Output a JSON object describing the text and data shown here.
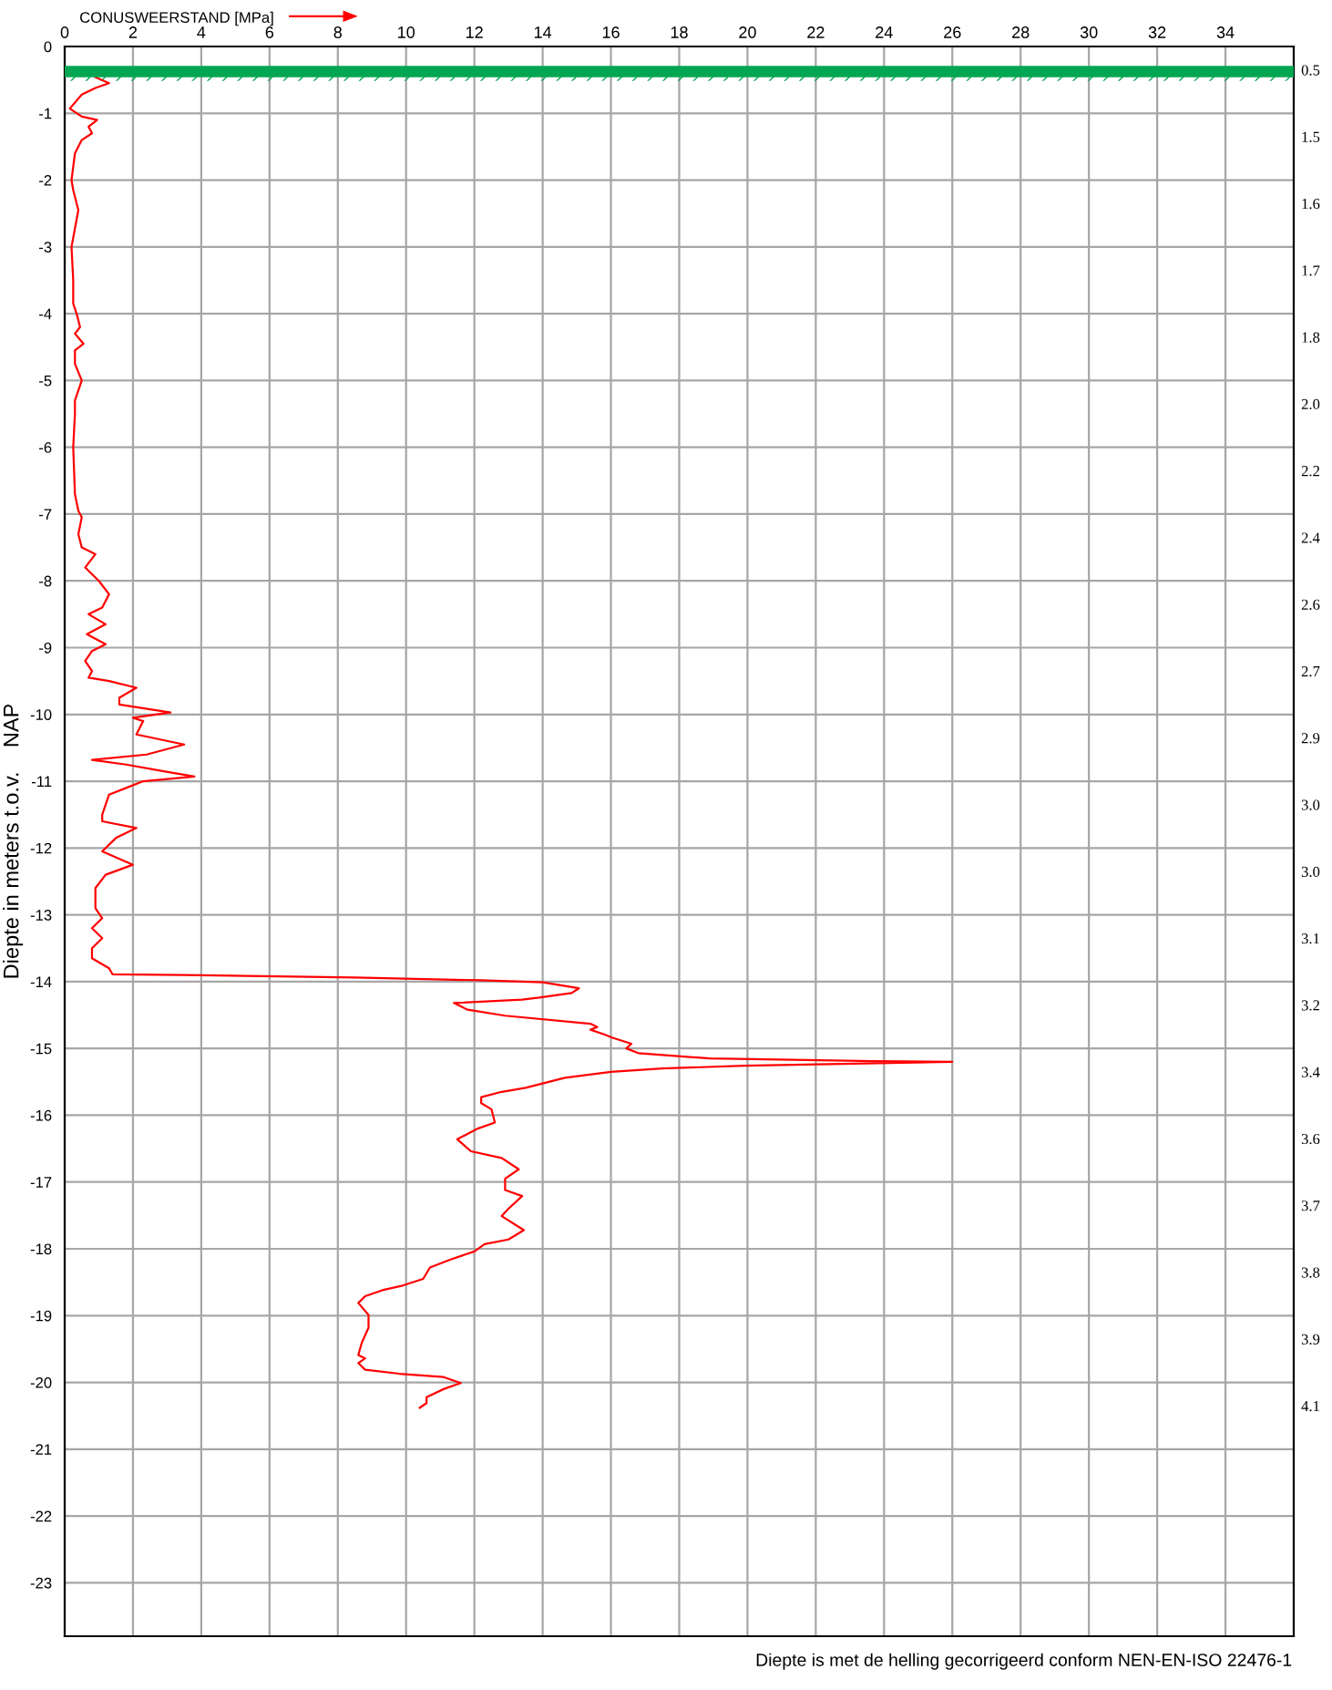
{
  "chart_data": {
    "type": "line",
    "xlabel": "CONUSWEERSTAND [MPa]",
    "ylabel": "Diepte in meters t.o.v.    NAP",
    "xlim": [
      0,
      36
    ],
    "xticks": [
      0,
      2,
      4,
      6,
      8,
      10,
      12,
      14,
      16,
      18,
      20,
      22,
      24,
      26,
      28,
      30,
      32,
      34
    ],
    "ylim": [
      -23.8,
      0
    ],
    "yticks": [
      0,
      -1,
      -2,
      -3,
      -4,
      -5,
      -6,
      -7,
      -8,
      -9,
      -10,
      -11,
      -12,
      -13,
      -14,
      -15,
      -16,
      -17,
      -18,
      -19,
      -20,
      -21,
      -22,
      -23
    ],
    "grid": true,
    "ref_lines": [
      {
        "axis": "y",
        "value": -0.375,
        "color": "#00a651"
      }
    ],
    "annotations": [
      "Diepte is met de helling gecorrigeerd conform NEN-EN-ISO 22476-1",
      "0.5",
      "1.5",
      "1.6",
      "1.7",
      "1.8",
      "2.0",
      "2.2",
      "2.4",
      "2.6",
      "2.7",
      "2.9",
      "3.0",
      "3.0",
      "3.1",
      "3.2",
      "3.4",
      "3.6",
      "3.7",
      "3.8",
      "3.9",
      "4.1"
    ],
    "series": [
      {
        "color": "#ff0000",
        "x": [
          0.9,
          1.3,
          0.9,
          0.5,
          0.15,
          0.5,
          0.95,
          0.7,
          0.8,
          0.5,
          0.3,
          0.2,
          0.25,
          0.4,
          0.2,
          0.25,
          0.25,
          0.35,
          0.45,
          0.3,
          0.55,
          0.3,
          0.3,
          0.5,
          0.3,
          0.3,
          0.25,
          0.3,
          0.4,
          0.5,
          0.4,
          0.5,
          0.9,
          0.6,
          1.0,
          1.3,
          1.1,
          0.7,
          1.2,
          0.65,
          1.2,
          0.8,
          0.6,
          0.8,
          0.7,
          1.3,
          2.1,
          1.6,
          1.6,
          3.1,
          2.0,
          2.3,
          2.1,
          3.5,
          2.4,
          0.8,
          1.8,
          2.9,
          3.8,
          2.3,
          1.8,
          1.3,
          1.1,
          1.1,
          2.1,
          1.5,
          1.1,
          2.0,
          1.2,
          0.9,
          0.9,
          1.1,
          0.8,
          1.1,
          0.8,
          0.8,
          1.3,
          1.4,
          3.5,
          8.5,
          12.2,
          14.0,
          15.06,
          14.85,
          13.9,
          13.4,
          11.4,
          11.8,
          12.9,
          15.4,
          15.6,
          15.4,
          15.8,
          16.05,
          16.6,
          16.45,
          16.8,
          18.9,
          23.7,
          26.0,
          19.9,
          17.5,
          16.0,
          14.65,
          13.5,
          12.8,
          12.2,
          12.2,
          12.5,
          12.6,
          12.1,
          11.5,
          11.9,
          12.8,
          13.3,
          12.9,
          12.9,
          13.4,
          13.0,
          12.8,
          13.45,
          13.0,
          12.3,
          12.0,
          11.3,
          10.7,
          10.5,
          9.9,
          9.3,
          8.8,
          8.6,
          8.9,
          8.9,
          8.7,
          8.6,
          8.8,
          8.6,
          8.8,
          9.8,
          11.1,
          11.6,
          11.1,
          10.6,
          10.6,
          10.4
        ],
        "values": [
          -0.46,
          -0.55,
          -0.62,
          -0.72,
          -0.93,
          -1.05,
          -1.1,
          -1.2,
          -1.3,
          -1.4,
          -1.6,
          -2.0,
          -2.15,
          -2.45,
          -3.0,
          -3.5,
          -3.85,
          -4.0,
          -4.2,
          -4.3,
          -4.45,
          -4.55,
          -4.75,
          -5.0,
          -5.3,
          -5.5,
          -6.0,
          -6.7,
          -6.95,
          -7.05,
          -7.3,
          -7.5,
          -7.6,
          -7.8,
          -8.0,
          -8.2,
          -8.4,
          -8.5,
          -8.65,
          -8.8,
          -8.95,
          -9.05,
          -9.2,
          -9.35,
          -9.45,
          -9.5,
          -9.6,
          -9.75,
          -9.85,
          -9.97,
          -10.05,
          -10.1,
          -10.3,
          -10.45,
          -10.6,
          -10.68,
          -10.75,
          -10.85,
          -10.93,
          -11.0,
          -11.1,
          -11.2,
          -11.5,
          -11.6,
          -11.7,
          -11.85,
          -12.05,
          -12.25,
          -12.4,
          -12.6,
          -12.9,
          -13.05,
          -13.2,
          -13.35,
          -13.5,
          -13.65,
          -13.8,
          -13.89,
          -13.9,
          -13.94,
          -13.98,
          -14.01,
          -14.1,
          -14.17,
          -14.24,
          -14.27,
          -14.32,
          -14.42,
          -14.51,
          -14.63,
          -14.68,
          -14.72,
          -14.79,
          -14.84,
          -14.93,
          -15.0,
          -15.07,
          -15.15,
          -15.19,
          -15.2,
          -15.26,
          -15.3,
          -15.35,
          -15.44,
          -15.59,
          -15.65,
          -15.73,
          -15.82,
          -15.91,
          -16.11,
          -16.2,
          -16.36,
          -16.54,
          -16.64,
          -16.81,
          -16.95,
          -17.12,
          -17.21,
          -17.4,
          -17.51,
          -17.72,
          -17.86,
          -17.93,
          -18.04,
          -18.16,
          -18.28,
          -18.45,
          -18.55,
          -18.62,
          -18.71,
          -18.81,
          -18.99,
          -19.18,
          -19.41,
          -19.59,
          -19.64,
          -19.71,
          -19.81,
          -19.87,
          -19.92,
          -20.01,
          -20.1,
          -20.22,
          -20.31,
          -20.38
        ]
      }
    ]
  }
}
